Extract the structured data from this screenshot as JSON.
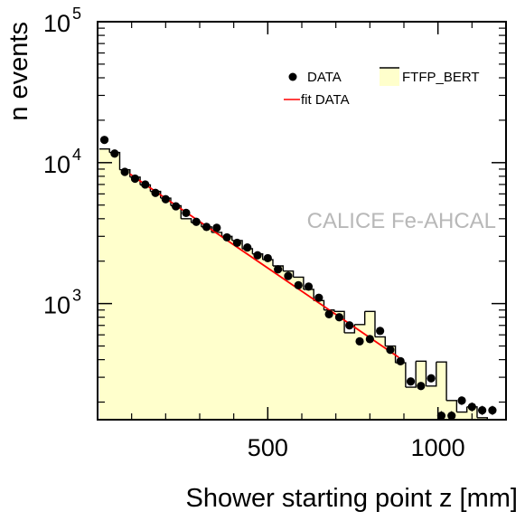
{
  "chart_data": {
    "type": "scatter",
    "title": "",
    "xlabel": "Shower starting point z [mm]",
    "ylabel": "n events",
    "xlim": [
      0,
      1200
    ],
    "ylim": [
      150,
      100000
    ],
    "yscale": "log",
    "grid": false,
    "legend_position": "top-right",
    "x_ticks": [
      {
        "value": 500,
        "label": "500"
      },
      {
        "value": 1000,
        "label": "1000"
      }
    ],
    "y_ticks": [
      {
        "value": 1000,
        "base": "10",
        "exp": "3"
      },
      {
        "value": 10000,
        "base": "10",
        "exp": "4"
      },
      {
        "value": 100000,
        "base": "10",
        "exp": "5"
      }
    ],
    "annotation": "CALICE Fe-AHCAL",
    "colors": {
      "data": "#000000",
      "fit": "#ff0000",
      "mc_fill": "#ffffcc",
      "mc_line": "#000000",
      "annotation": "#b8b8b8"
    },
    "legend": {
      "data": "DATA",
      "mc": "FTFP_BERT",
      "fit": "fit DATA"
    },
    "series": [
      {
        "name": "DATA",
        "kind": "points",
        "x": [
          20,
          50,
          80,
          110,
          140,
          170,
          200,
          230,
          260,
          290,
          320,
          350,
          380,
          410,
          440,
          470,
          500,
          530,
          560,
          590,
          620,
          650,
          680,
          710,
          740,
          770,
          800,
          830,
          860,
          890,
          920,
          950,
          980,
          1010,
          1040,
          1070,
          1100,
          1130,
          1160
        ],
        "y": [
          14500,
          11600,
          8600,
          7700,
          7000,
          6100,
          5500,
          4900,
          4400,
          3800,
          3500,
          3450,
          2950,
          2700,
          2500,
          2200,
          2100,
          1750,
          1570,
          1350,
          1320,
          1100,
          840,
          800,
          700,
          540,
          560,
          640,
          470,
          390,
          280,
          260,
          295,
          160,
          160,
          205,
          185,
          175,
          175
        ]
      },
      {
        "name": "FTFP_BERT",
        "kind": "histogram",
        "edges": [
          5,
          35,
          65,
          95,
          125,
          155,
          185,
          215,
          245,
          275,
          305,
          335,
          365,
          395,
          425,
          455,
          485,
          515,
          545,
          575,
          605,
          635,
          665,
          695,
          725,
          755,
          785,
          815,
          845,
          875,
          905,
          935,
          965,
          995,
          1025,
          1055,
          1085,
          1115,
          1145,
          1175
        ],
        "values": [
          12500,
          11800,
          8900,
          7900,
          6950,
          6250,
          5600,
          4950,
          4000,
          3750,
          3500,
          3200,
          3000,
          2800,
          2450,
          2250,
          2050,
          1850,
          1700,
          1540,
          1260,
          1050,
          900,
          880,
          620,
          710,
          880,
          580,
          500,
          380,
          255,
          390,
          260,
          385,
          205,
          170,
          185,
          155,
          150
        ]
      },
      {
        "name": "fit DATA",
        "kind": "line",
        "x": [
          95,
          885
        ],
        "y": [
          8300,
          415
        ]
      }
    ]
  }
}
